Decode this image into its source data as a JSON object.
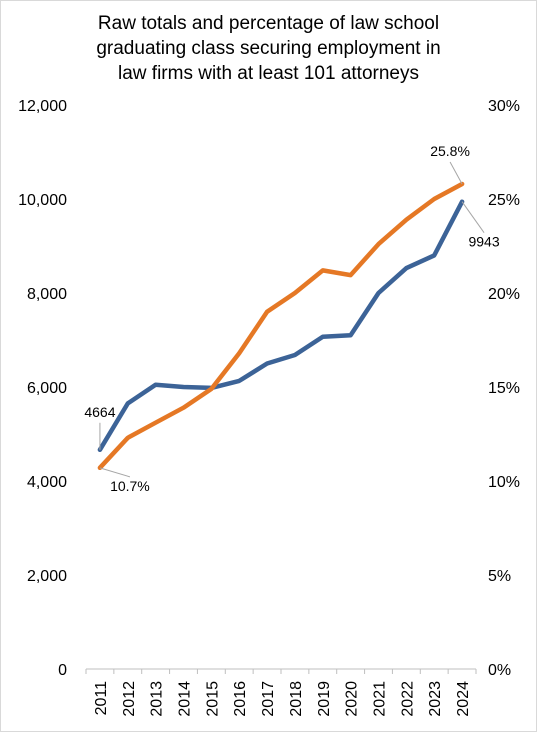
{
  "chart_data": {
    "type": "line",
    "title_lines": [
      "Raw totals and percentage of law school",
      "graduating class securing employment in",
      "law firms with at least 101 attorneys"
    ],
    "categories": [
      "2011",
      "2012",
      "2013",
      "2014",
      "2015",
      "2016",
      "2017",
      "2018",
      "2019",
      "2020",
      "2021",
      "2022",
      "2023",
      "2024"
    ],
    "series": [
      {
        "axis": "left",
        "color": "#3C6397",
        "values": [
          4664,
          5650,
          6050,
          6000,
          5980,
          6130,
          6500,
          6680,
          7070,
          7100,
          8000,
          8530,
          8800,
          9943
        ],
        "data_labels": [
          {
            "index": 0,
            "text": "4664"
          },
          {
            "index": 13,
            "text": "9943"
          }
        ]
      },
      {
        "axis": "right",
        "color": "#E57825",
        "values": [
          10.7,
          12.3,
          13.1,
          13.9,
          14.9,
          16.8,
          19.0,
          20.0,
          21.2,
          20.95,
          22.6,
          23.9,
          25.0,
          25.8
        ],
        "data_labels": [
          {
            "index": 0,
            "text": "10.7%"
          },
          {
            "index": 13,
            "text": "25.8%"
          }
        ]
      }
    ],
    "y_left": {
      "min": 0,
      "max": 12000,
      "ticks": [
        0,
        2000,
        4000,
        6000,
        8000,
        10000,
        12000
      ],
      "tick_labels": [
        "0",
        "2,000",
        "4,000",
        "6,000",
        "8,000",
        "10,000",
        "12,000"
      ]
    },
    "y_right": {
      "min": 0,
      "max": 30,
      "ticks": [
        0,
        5,
        10,
        15,
        20,
        25,
        30
      ],
      "tick_labels": [
        "0%",
        "5%",
        "10%",
        "15%",
        "20%",
        "25%",
        "30%"
      ]
    },
    "grid": false,
    "legend": "none",
    "axis_color": "#bfbfbf",
    "leader_color": "#a6a6a6"
  }
}
